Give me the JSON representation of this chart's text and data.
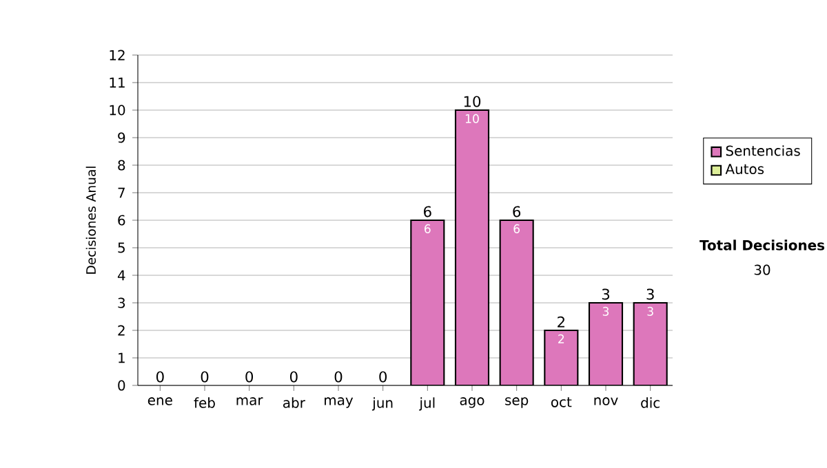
{
  "chart_data": {
    "type": "bar",
    "stacked": true,
    "categories": [
      "ene",
      "feb",
      "mar",
      "abr",
      "may",
      "jun",
      "jul",
      "ago",
      "sep",
      "oct",
      "nov",
      "dic"
    ],
    "series": [
      {
        "name": "Sentencias",
        "color": "#dd77bb",
        "values": [
          0,
          0,
          0,
          0,
          0,
          0,
          6,
          10,
          6,
          2,
          3,
          3
        ],
        "value_labels": [
          null,
          null,
          null,
          null,
          null,
          null,
          "6",
          "10",
          "6",
          "2",
          "3",
          "3"
        ]
      },
      {
        "name": "Autos",
        "color": "#ddee99",
        "values": [
          0,
          0,
          0,
          0,
          0,
          0,
          0,
          0,
          0,
          0,
          0,
          0
        ]
      }
    ],
    "totals": [
      "0",
      "0",
      "0",
      "0",
      "0",
      "0",
      "6",
      "10",
      "6",
      "2",
      "3",
      "3"
    ],
    "ylabel": "Decisiones Anual",
    "ylim": [
      0,
      12
    ],
    "yticks": [
      0,
      1,
      2,
      3,
      4,
      5,
      6,
      7,
      8,
      9,
      10,
      11,
      12
    ],
    "grid": "y",
    "legend": "right",
    "annotations": [
      "Total Decisiones",
      "30"
    ]
  }
}
